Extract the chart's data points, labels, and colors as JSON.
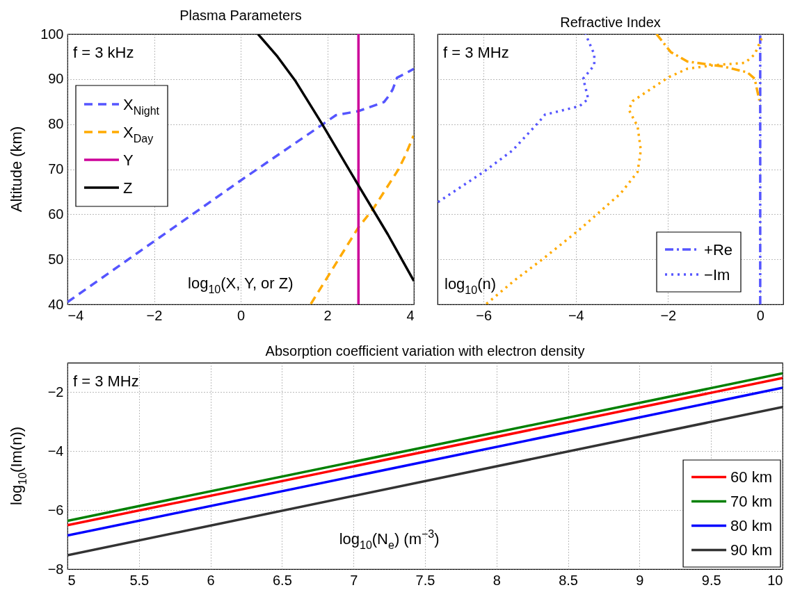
{
  "chart_data": [
    {
      "type": "line",
      "title": "Plasma Parameters",
      "xlabel": "log$_{10}$(X, Y, or Z)",
      "ylabel": "Altitude (km)",
      "annotations": [
        "f = 3 kHz"
      ],
      "xlim": [
        -4,
        4
      ],
      "xticks": [
        -4,
        -2,
        0,
        2,
        4
      ],
      "ylim": [
        40,
        100
      ],
      "yticks": [
        40,
        50,
        60,
        70,
        80,
        90,
        100
      ],
      "grid": true,
      "legend": "top left",
      "series": [
        {
          "name": "X$_{Night}$",
          "color": "#5555ff",
          "line_style": "dashed",
          "x": [
            -4,
            -2,
            0,
            1.9,
            2.2,
            2.72,
            3.31,
            3.43,
            3.51,
            3.61,
            3.85,
            4
          ],
          "values": [
            40.5,
            54,
            67.5,
            80,
            82,
            82.9,
            84.9,
            86.4,
            87.7,
            90.3,
            91.5,
            92.3
          ]
        },
        {
          "name": "X$_{Day}$",
          "color": "#ffaa00",
          "line_style": "dashed",
          "x": [
            1.62,
            2.72,
            3.06,
            3.64,
            3.8,
            3.99
          ],
          "values": [
            40.1,
            57.1,
            61.2,
            69.9,
            73,
            77.4
          ]
        },
        {
          "name": "Y",
          "color": "#cc0099",
          "line_style": "solid",
          "x": [
            2.72,
            2.72
          ],
          "values": [
            40,
            100
          ]
        },
        {
          "name": "Z",
          "color": "#000000",
          "line_style": "solid",
          "x": [
            0.4,
            0.85,
            1.27,
            1.87,
            2.72,
            3.4,
            4
          ],
          "values": [
            100,
            95,
            89.5,
            80.2,
            66.4,
            55.5,
            45.2
          ]
        }
      ]
    },
    {
      "type": "line",
      "title": "Refractive Index",
      "xlabel": "log$_{10}$(n)",
      "annotations": [
        "f = 3 MHz"
      ],
      "xlim": [
        -7,
        0.5
      ],
      "xticks": [
        -6,
        -4,
        -2,
        0
      ],
      "ylim": [
        40,
        100
      ],
      "yticks": [
        40,
        50,
        60,
        70,
        80,
        90,
        100
      ],
      "tick_labels": "x",
      "grid": true,
      "legend": "bottom right",
      "series": [
        {
          "name": "+Re",
          "color": "#5555ff",
          "line_style": "dashdot",
          "x": [
            0,
            0
          ],
          "values": [
            40,
            100
          ]
        },
        {
          "color": "#ffaa00",
          "line_style": "dashdot",
          "x": [
            -2.25,
            -1.94,
            -1.58,
            -0.8,
            -0.28,
            -0.12,
            -0.02
          ],
          "values": [
            100,
            96,
            93.9,
            92.8,
            91.5,
            90.1,
            85.3
          ]
        },
        {
          "name": "−Im",
          "color": "#5555ff",
          "line_style": "dotted",
          "x": [
            -6.99,
            -6,
            -5.37,
            -4.8,
            -4.67,
            -3.92,
            -3.73,
            -3.84,
            -3.6,
            -3.6,
            -3.79
          ],
          "values": [
            62.7,
            69.4,
            74.2,
            80.5,
            82.1,
            84,
            85.6,
            90.1,
            93.1,
            95.5,
            100
          ]
        },
        {
          "color": "#ffaa00",
          "line_style": "dotted",
          "x": [
            -5.94,
            -5.32,
            -4.7,
            -3.92,
            -3.03,
            -2.66,
            -2.59,
            -2.66,
            -2.85,
            -2.77,
            -1.99,
            -1.58,
            -1,
            -0.33,
            -0.12,
            0.06
          ],
          "values": [
            40.1,
            45.4,
            50.2,
            56.6,
            64.6,
            69.4,
            74.2,
            79.5,
            83.2,
            85.1,
            90.4,
            92.3,
            93.1,
            93.6,
            95.5,
            99.7
          ]
        }
      ]
    },
    {
      "type": "line",
      "title": "Absorption coefficient variation with electron density",
      "xlabel": "log$_{10}$(N$_{e}$) (m$^{−3}$)",
      "ylabel": "log$_{10}$(Im(n))",
      "annotations": [
        "f = 3 MHz"
      ],
      "xlim": [
        5,
        10
      ],
      "xticks": [
        5,
        5.5,
        6,
        6.5,
        7,
        7.5,
        8,
        8.5,
        9,
        9.5,
        10
      ],
      "ylim": [
        -8,
        -1
      ],
      "yticks": [
        -8,
        -6,
        -4,
        -2
      ],
      "grid": true,
      "legend": "bottom right",
      "x": [
        5,
        10
      ],
      "series": [
        {
          "name": "60 km",
          "color": "#ff0000",
          "values": [
            -6.51,
            -1.52
          ]
        },
        {
          "name": "70 km",
          "color": "#008000",
          "values": [
            -6.36,
            -1.36
          ]
        },
        {
          "name": "80 km",
          "color": "#0000ff",
          "values": [
            -6.86,
            -1.85
          ]
        },
        {
          "name": "90 km",
          "color": "#333333",
          "values": [
            -7.53,
            -2.5
          ]
        }
      ]
    }
  ]
}
